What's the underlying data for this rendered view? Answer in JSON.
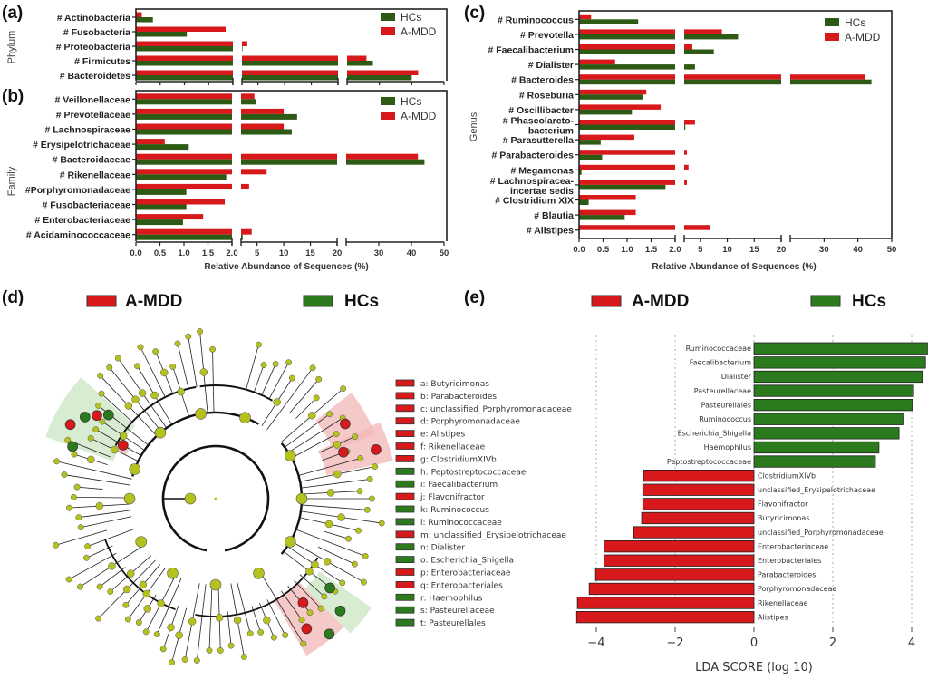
{
  "colors": {
    "hcs": "#2d5a14",
    "amdd": "#d7191c",
    "node": "#b5c21e",
    "green_shade": "#c9e6c0",
    "red_shade": "#f3b7b7"
  },
  "chart_data": [
    {
      "id": "a",
      "panel_label": "(a)",
      "type": "bar",
      "orientation": "horizontal",
      "ylabel": "Phylum",
      "xlabel": "",
      "axis_breaks": [
        [
          0,
          2.0
        ],
        [
          2.0,
          20
        ],
        [
          20,
          50
        ]
      ],
      "xticks": [
        "0.0",
        "0.5",
        "1.0",
        "1.5",
        "2.0",
        "5",
        "10",
        "15",
        "20",
        "30",
        "40",
        "50"
      ],
      "legend": [
        "HCs",
        "A-MDD"
      ],
      "legend_position": "top-right",
      "categories": [
        "# Actinobacteria",
        "# Fusobacteria",
        "# Proteobacteria",
        "# Firmicutes",
        "# Bacteroidetes"
      ],
      "series": [
        {
          "name": "A-MDD",
          "values": [
            0.12,
            1.85,
            3.0,
            26.0,
            42.0
          ]
        },
        {
          "name": "HCs",
          "values": [
            0.35,
            1.05,
            2.1,
            28.0,
            40.0
          ]
        }
      ]
    },
    {
      "id": "b",
      "panel_label": "(b)",
      "type": "bar",
      "orientation": "horizontal",
      "ylabel": "Family",
      "xlabel": "Relative Abundance of Sequences (%)",
      "axis_breaks": [
        [
          0,
          2.0
        ],
        [
          2.0,
          20
        ],
        [
          20,
          50
        ]
      ],
      "xticks": [
        "0.0",
        "0.5",
        "1.0",
        "1.5",
        "2.0",
        "5",
        "10",
        "15",
        "20",
        "30",
        "40",
        "50"
      ],
      "legend": [
        "HCs",
        "A-MDD"
      ],
      "legend_position": "top-right",
      "categories": [
        "# Veillonellaceae",
        "# Prevotellaceae",
        "# Lachnospiraceae",
        "# Erysipelotrichaceae",
        "# Bacteroidaceae",
        "# Rikenellaceae",
        "#Porphyromonadaceae",
        "# Fusobacteriaceae",
        "# Enterobacteriaceae",
        "# Acidaminococcaceae"
      ],
      "series": [
        {
          "name": "A-MDD",
          "values": [
            4.5,
            10.0,
            10.0,
            0.6,
            42.0,
            6.8,
            3.5,
            1.85,
            1.4,
            4.0
          ]
        },
        {
          "name": "HCs",
          "values": [
            4.8,
            12.5,
            11.5,
            1.1,
            44.0,
            1.88,
            1.05,
            1.05,
            0.98,
            2.3
          ]
        }
      ]
    },
    {
      "id": "c",
      "panel_label": "(c)",
      "type": "bar",
      "orientation": "horizontal",
      "ylabel": "Genus",
      "xlabel": "Relative Abundance of Sequences (%)",
      "axis_breaks": [
        [
          0,
          2.0
        ],
        [
          2.0,
          20
        ],
        [
          20,
          50
        ]
      ],
      "xticks": [
        "0.0",
        "0.5",
        "1.0",
        "1.5",
        "2.0",
        "5",
        "10",
        "15",
        "20",
        "30",
        "40",
        "50"
      ],
      "legend": [
        "HCs",
        "A-MDD"
      ],
      "legend_position": "top-right",
      "categories": [
        "# Ruminococcus",
        "# Prevotella",
        "# Faecalibacterium",
        "# Dialister",
        "# Bacteroides",
        "# Roseburia",
        "# Oscillibacter",
        "# Phascolarcto-\nbacterium",
        "# Parasutterella",
        "# Parabacteroides",
        "# Megamonas",
        "# Lachnospiracea-\nincertae sedis",
        "# Clostridium XIX",
        "# Blautia",
        "# Alistipes"
      ],
      "series": [
        {
          "name": "A-MDD",
          "values": [
            0.25,
            9.0,
            3.5,
            0.75,
            42.0,
            1.4,
            1.7,
            4.0,
            1.15,
            2.5,
            2.8,
            2.5,
            1.18,
            1.18,
            6.8
          ]
        },
        {
          "name": "HCs",
          "values": [
            1.23,
            12.0,
            7.5,
            4.0,
            44.0,
            1.32,
            1.1,
            2.2,
            0.45,
            0.48,
            0.05,
            1.8,
            0.2,
            0.95,
            0.0
          ]
        }
      ]
    },
    {
      "id": "e",
      "panel_label": "(e)",
      "type": "bar",
      "orientation": "horizontal",
      "xlabel": "LDA SCORE (log 10)",
      "xlim": [
        -4.5,
        4.4
      ],
      "xticks": [
        "−4",
        "−2",
        "0",
        "2",
        "4"
      ],
      "grid": true,
      "legend": [
        "A-MDD",
        "HCs"
      ],
      "legend_position": "top",
      "categories": [
        "Ruminococcaceae",
        "Faecalibacterium",
        "Dialister",
        "Pasteurellaceae",
        "Pasteurellales",
        "Ruminococcus",
        "Escherichia_Shigella",
        "Haemophilus",
        "Peptostreptococcaceae",
        "ClostridiumXIVb",
        "unclassified_Erysipelotrichaceae",
        "Flavonifractor",
        "Butyricimonas",
        "unclassified_Porphyromonadaceae",
        "Enterobacteriaceae",
        "Enterobacteriales",
        "Parabacteroides",
        "Porphyromonadaceae",
        "Rikenellaceae",
        "Alistipes"
      ],
      "values": [
        4.4,
        4.35,
        4.27,
        4.05,
        4.02,
        3.78,
        3.68,
        3.17,
        3.08,
        -2.8,
        -2.82,
        -2.82,
        -2.85,
        -3.05,
        -3.8,
        -3.8,
        -4.02,
        -4.18,
        -4.48,
        -4.5
      ],
      "groups": [
        "HCs",
        "HCs",
        "HCs",
        "HCs",
        "HCs",
        "HCs",
        "HCs",
        "HCs",
        "HCs",
        "A-MDD",
        "A-MDD",
        "A-MDD",
        "A-MDD",
        "A-MDD",
        "A-MDD",
        "A-MDD",
        "A-MDD",
        "A-MDD",
        "A-MDD",
        "A-MDD"
      ]
    }
  ],
  "cladogram": {
    "panel_label": "(d)",
    "legend_title_amdd": "A-MDD",
    "legend_title_hcs": "HCs",
    "legend_items": [
      {
        "key": "a",
        "label": "a: Butyricimonas",
        "group": "A-MDD"
      },
      {
        "key": "b",
        "label": "b: Parabacteroides",
        "group": "A-MDD"
      },
      {
        "key": "c",
        "label": "c: unclassified_Porphyromonadaceae",
        "group": "A-MDD"
      },
      {
        "key": "d",
        "label": "d: Porphyromonadaceae",
        "group": "A-MDD"
      },
      {
        "key": "e",
        "label": "e: Alistipes",
        "group": "A-MDD"
      },
      {
        "key": "f",
        "label": "f: Rikenellaceae",
        "group": "A-MDD"
      },
      {
        "key": "g",
        "label": "g: ClostridiumXIVb",
        "group": "A-MDD"
      },
      {
        "key": "h",
        "label": "h: Peptostreptococcaceae",
        "group": "HCs"
      },
      {
        "key": "i",
        "label": "i: Faecalibacterium",
        "group": "HCs"
      },
      {
        "key": "j",
        "label": "j: Flavonifractor",
        "group": "A-MDD"
      },
      {
        "key": "k",
        "label": "k: Ruminococcus",
        "group": "HCs"
      },
      {
        "key": "l",
        "label": "l: Ruminococcaceae",
        "group": "HCs"
      },
      {
        "key": "m",
        "label": "m: unclassified_Erysipelotrichaceae",
        "group": "A-MDD"
      },
      {
        "key": "n",
        "label": "n: Dialister",
        "group": "HCs"
      },
      {
        "key": "o",
        "label": "o: Escherichia_Shigella",
        "group": "HCs"
      },
      {
        "key": "p",
        "label": "p: Enterobacteriaceae",
        "group": "A-MDD"
      },
      {
        "key": "q",
        "label": "q: Enterobacteriales",
        "group": "A-MDD"
      },
      {
        "key": "r",
        "label": "r: Haemophilus",
        "group": "HCs"
      },
      {
        "key": "s",
        "label": "s: Pasteurellaceae",
        "group": "HCs"
      },
      {
        "key": "t",
        "label": "t: Pasteurellales",
        "group": "HCs"
      }
    ]
  }
}
